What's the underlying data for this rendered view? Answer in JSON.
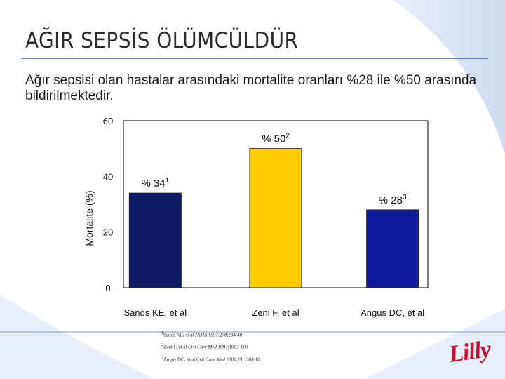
{
  "slide": {
    "title": "AĞIR SEPSİS ÖLÜMCÜLDÜR",
    "subtitle": "Ağır sepsisi olan hastalar arasındaki mortalite oranları %28 ile %50 arasında bildirilmektedir.",
    "logo_text": "Lilly",
    "colors": {
      "accent": "#6b7fb5",
      "logo": "#c8102e"
    }
  },
  "chart_data": {
    "type": "bar",
    "ylabel": "Mortalite (%)",
    "xlabel": "",
    "ylim": [
      0,
      60
    ],
    "yticks": [
      "0",
      "20",
      "40",
      "60"
    ],
    "grid": false,
    "categories": [
      "Sands KE, et al",
      "Zeni F, et al",
      "Angus DC, et al"
    ],
    "values": [
      34,
      50,
      28
    ],
    "data_labels": [
      {
        "text": "% 34",
        "ref": "1"
      },
      {
        "text": "% 50",
        "ref": "2"
      },
      {
        "text": "% 28",
        "ref": "3"
      }
    ],
    "colors": [
      "#0d1a66",
      "#ffcc00",
      "#0d1a99"
    ]
  },
  "footnotes": [
    {
      "num": "1",
      "authors": "Sands KE, et al",
      "journal": "JAMA",
      "cite": "1997;278:234-40"
    },
    {
      "num": "2",
      "authors": "Zeni F, et al",
      "journal": "Crit Care Med",
      "cite": "1997;1095-100"
    },
    {
      "num": "3",
      "authors": "Angus DC, et al",
      "journal": "Crit Care Med",
      "cite": "2001;29:1303-10"
    }
  ]
}
